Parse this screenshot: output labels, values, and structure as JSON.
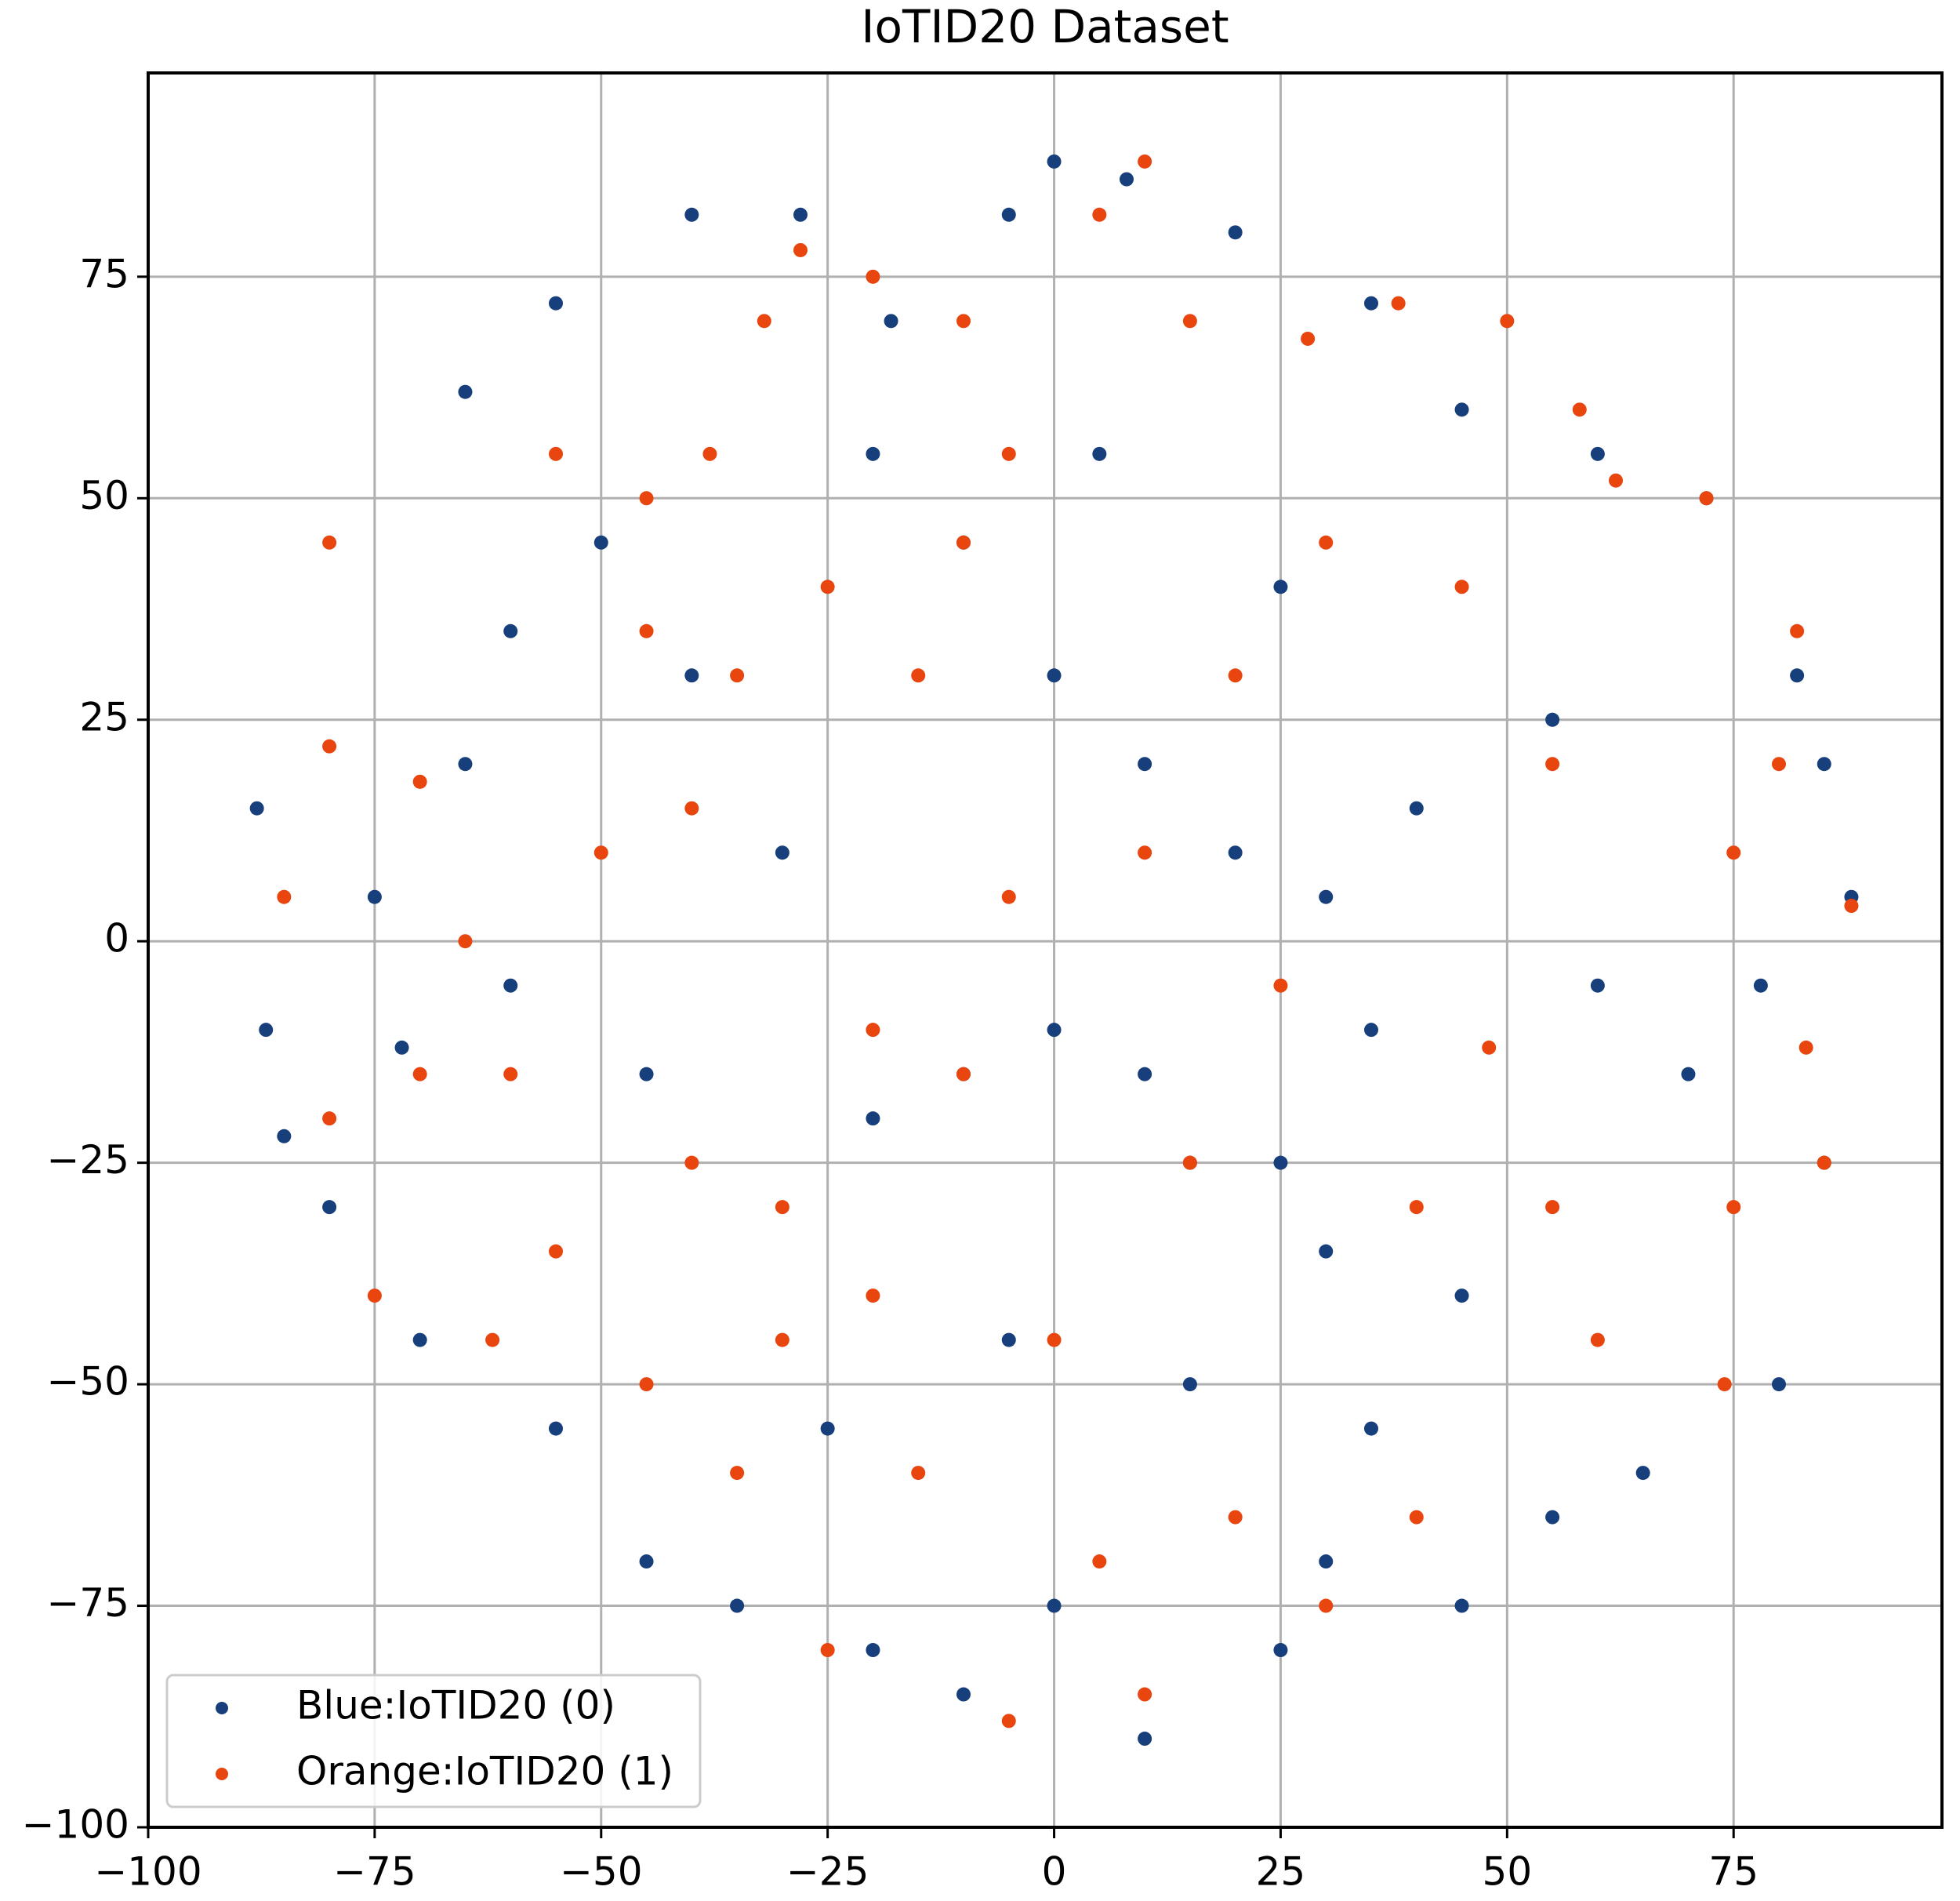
{
  "chart_data": {
    "type": "scatter",
    "title": "IoTID20 Dataset",
    "xlim": [
      -100,
      98
    ],
    "ylim": [
      -100,
      98
    ],
    "xticks": [
      {
        "value": -100,
        "label": "−100"
      },
      {
        "value": -75,
        "label": "−75"
      },
      {
        "value": -50,
        "label": "−50"
      },
      {
        "value": -25,
        "label": "−25"
      },
      0,
      25,
      50,
      75
    ],
    "yticks": [
      {
        "value": -100,
        "label": "−100"
      },
      {
        "value": -75,
        "label": "−75"
      },
      {
        "value": -50,
        "label": "−50"
      },
      {
        "value": -25,
        "label": "−25"
      },
      0,
      25,
      50,
      75
    ],
    "grid": true,
    "legend": "lower left",
    "series": [
      {
        "name": "Blue:IoTID20 (0)",
        "color": "#173f7c",
        "x": [
          -88,
          -87,
          -85,
          -72,
          -65,
          -55,
          -40,
          -28,
          -18,
          -5,
          0,
          8,
          20,
          35,
          45,
          60,
          72,
          82,
          85,
          88,
          78,
          70,
          85,
          80,
          65,
          55,
          45,
          30,
          25,
          10,
          0,
          -10,
          -20,
          -35,
          -45,
          -55,
          -70,
          -80,
          -75,
          -65,
          -60,
          -50,
          -40,
          -30,
          -20,
          -10,
          0,
          10,
          15,
          25,
          30,
          35,
          30,
          20,
          10,
          0,
          -10,
          -20,
          5,
          25,
          40,
          55,
          60,
          45,
          15,
          -5,
          -25,
          35,
          -45,
          -60
        ],
        "y": [
          15,
          -10,
          -22,
          -12,
          62,
          72,
          82,
          82,
          70,
          82,
          88,
          86,
          80,
          72,
          60,
          55,
          50,
          30,
          20,
          5,
          -5,
          -15,
          -25,
          -50,
          -60,
          -65,
          -75,
          -70,
          -80,
          -90,
          -75,
          -85,
          -80,
          -75,
          -70,
          -55,
          -45,
          -30,
          5,
          20,
          35,
          45,
          30,
          10,
          -20,
          -15,
          -10,
          -15,
          -25,
          -25,
          -35,
          -10,
          5,
          10,
          20,
          30,
          45,
          55,
          55,
          40,
          15,
          25,
          -5,
          -40,
          -50,
          -45,
          -55,
          -55,
          -15,
          -5
        ]
      },
      {
        "name": "Orange:IoTID20 (1)",
        "color": "#e8450f",
        "x": [
          -80,
          -80,
          -85,
          -80,
          -70,
          -75,
          -62,
          -55,
          -60,
          -70,
          -65,
          -55,
          -45,
          -38,
          -28,
          -32,
          -20,
          -10,
          -5,
          5,
          10,
          15,
          28,
          38,
          50,
          58,
          62,
          72,
          82,
          80,
          75,
          88,
          83,
          85,
          75,
          60,
          74,
          55,
          48,
          40,
          30,
          20,
          10,
          5,
          -5,
          -15,
          -25,
          -30,
          -35,
          -45,
          -40,
          -30,
          -20,
          -10,
          -5,
          -15,
          -10,
          -25,
          -35,
          -45,
          -50,
          -40,
          10,
          20,
          30,
          45,
          55,
          25,
          15,
          40,
          0,
          -20
        ],
        "y": [
          45,
          22,
          5,
          -20,
          -15,
          -40,
          -45,
          -35,
          -15,
          18,
          0,
          55,
          50,
          55,
          78,
          70,
          75,
          70,
          55,
          82,
          88,
          70,
          68,
          72,
          70,
          60,
          52,
          50,
          35,
          20,
          10,
          4,
          -12,
          -25,
          -30,
          -45,
          -50,
          -30,
          -12,
          -65,
          -75,
          -65,
          -85,
          -70,
          -88,
          -60,
          -80,
          -45,
          -60,
          -50,
          -25,
          -30,
          -10,
          -15,
          5,
          30,
          45,
          40,
          30,
          35,
          10,
          15,
          10,
          30,
          45,
          40,
          20,
          -5,
          -25,
          -30,
          -45,
          -40
        ]
      }
    ]
  }
}
